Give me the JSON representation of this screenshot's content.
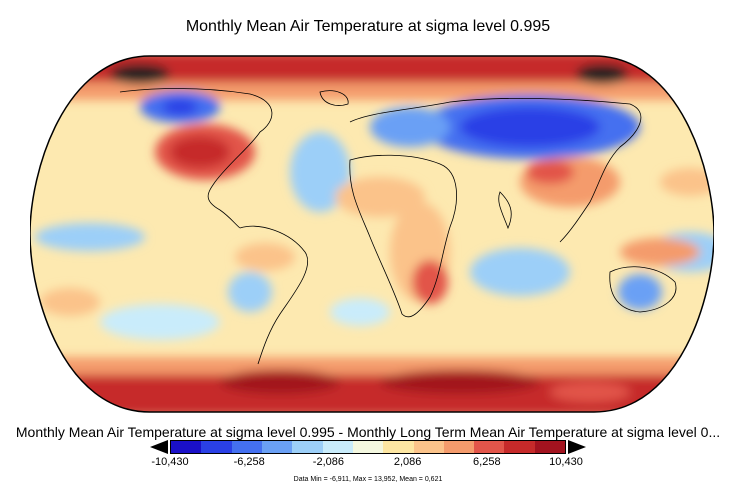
{
  "title": "Monthly Mean Air Temperature at sigma level 0.995",
  "subtitle": "Monthly Mean Air Temperature at sigma level 0.995 - Monthly Long Term Mean Air Temperature at sigma level 0...",
  "legend": {
    "colors": [
      "#1a10c8",
      "#2a40e6",
      "#4470f0",
      "#6aa0f5",
      "#9ccff8",
      "#c9ecfb",
      "#f4f8e0",
      "#fde6a2",
      "#fbc38a",
      "#f49b6c",
      "#e2554a",
      "#c62a2a",
      "#a2131f"
    ],
    "ticks": [
      "-10,430",
      "-6,258",
      "-2,086",
      "2,086",
      "6,258",
      "10,430"
    ]
  },
  "stats": "Data Min = -6,911, Max = 13,952, Mean = 0,621"
}
